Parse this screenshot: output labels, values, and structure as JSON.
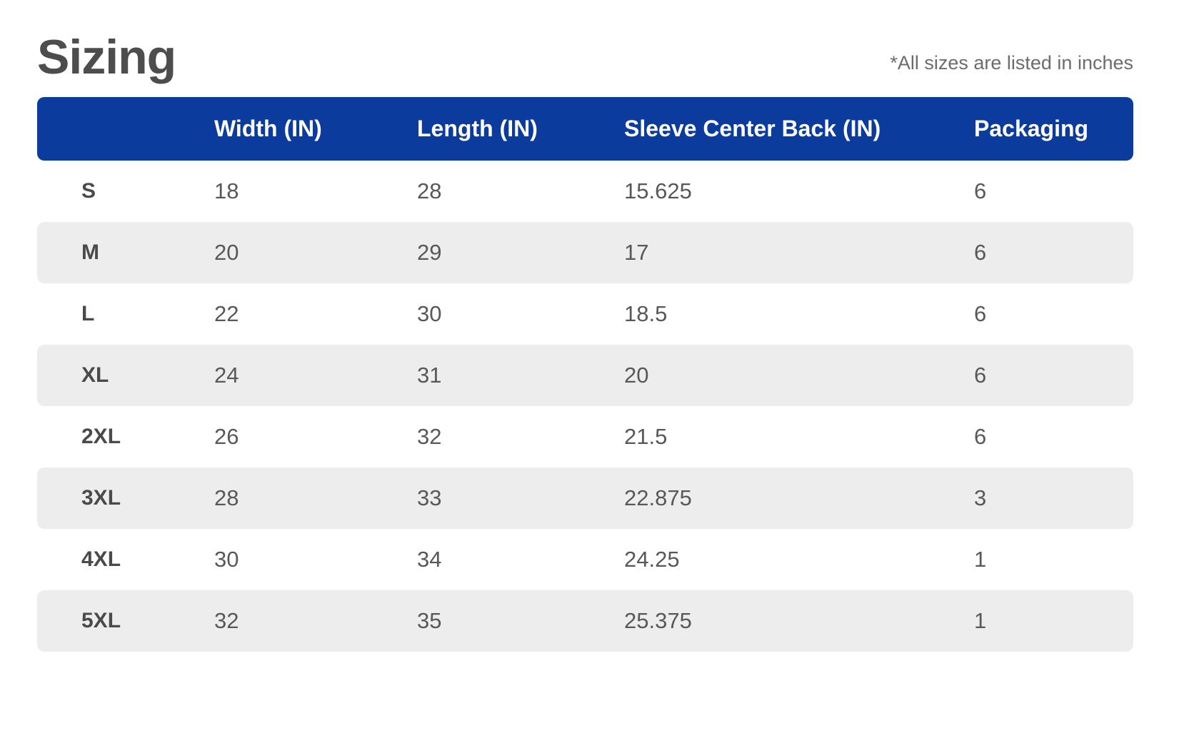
{
  "title": "Sizing",
  "note": "*All sizes are listed in inches",
  "colors": {
    "header_bg": "#0C3B9E",
    "stripe_bg": "#EEEDEE",
    "title_text": "#4D4D4F",
    "note_text": "#6A6C6F",
    "header_text": "#FFFFFF",
    "cell_text": "#58585A",
    "size_text": "#4A4A4C"
  },
  "table": {
    "columns": [
      "",
      "Width (IN)",
      "Length (IN)",
      "Sleeve Center Back (IN)",
      "Packaging"
    ],
    "rows": [
      {
        "size": "S",
        "width": "18",
        "length": "28",
        "sleeve": "15.625",
        "packaging": "6"
      },
      {
        "size": "M",
        "width": "20",
        "length": "29",
        "sleeve": "17",
        "packaging": "6"
      },
      {
        "size": "L",
        "width": "22",
        "length": "30",
        "sleeve": "18.5",
        "packaging": "6"
      },
      {
        "size": "XL",
        "width": "24",
        "length": "31",
        "sleeve": "20",
        "packaging": "6"
      },
      {
        "size": "2XL",
        "width": "26",
        "length": "32",
        "sleeve": "21.5",
        "packaging": "6"
      },
      {
        "size": "3XL",
        "width": "28",
        "length": "33",
        "sleeve": "22.875",
        "packaging": "3"
      },
      {
        "size": "4XL",
        "width": "30",
        "length": "34",
        "sleeve": "24.25",
        "packaging": "1"
      },
      {
        "size": "5XL",
        "width": "32",
        "length": "35",
        "sleeve": "25.375",
        "packaging": "1"
      }
    ]
  }
}
